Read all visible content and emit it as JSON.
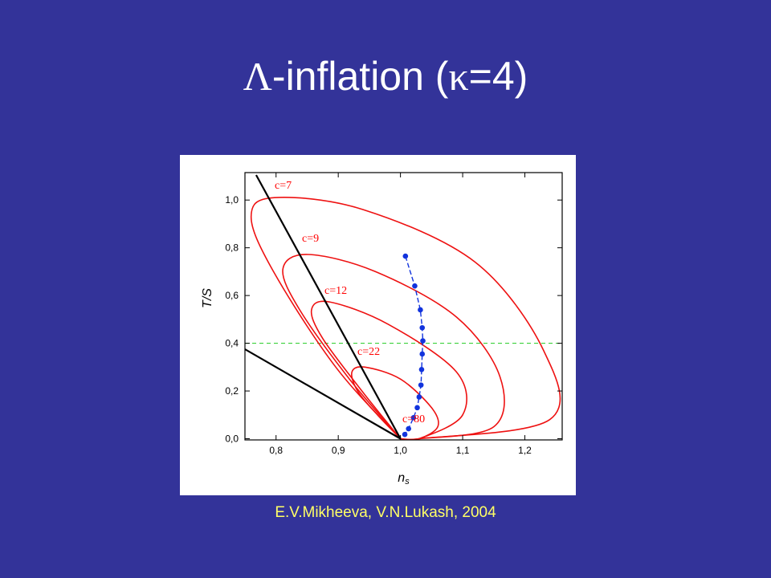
{
  "slide": {
    "title_prefix": "Λ",
    "title_middle": "-inflation (",
    "title_kappa": "κ",
    "title_suffix": "=4)",
    "caption": "E.V.Mikheeva, V.N.Lukash, 2004",
    "background": "#333399"
  },
  "chart_data": {
    "type": "line",
    "title": "",
    "xlabel": "n",
    "xlabel_sub": "s",
    "ylabel": "T/S",
    "xlim": [
      0.75,
      1.26
    ],
    "ylim": [
      -0.005,
      1.115
    ],
    "x_ticks": [
      0.8,
      0.9,
      1.0,
      1.1,
      1.2
    ],
    "x_tick_labels": [
      "0,8",
      "0,9",
      "1,0",
      "1,1",
      "1,2"
    ],
    "y_ticks": [
      0.0,
      0.2,
      0.4,
      0.6,
      0.8,
      1.0
    ],
    "y_tick_labels": [
      "0,0",
      "0,2",
      "0,4",
      "0,6",
      "0,8",
      "1,0"
    ],
    "colors": {
      "contours": "#ee1111",
      "track": "#1133dd",
      "bounds": "#000000",
      "reference": "#22cc22"
    },
    "reference_line": {
      "y": 0.4,
      "style": "dashed"
    },
    "boundary_lines": [
      {
        "name": "steep boundary",
        "x": [
          0.768,
          1.0
        ],
        "y": [
          1.105,
          0.0
        ]
      },
      {
        "name": "shallow boundary",
        "x": [
          0.75,
          1.0
        ],
        "y": [
          0.375,
          0.0
        ]
      }
    ],
    "contours": [
      {
        "label": "c=7",
        "x": [
          1.0,
          0.896,
          0.796,
          0.76,
          0.797,
          0.94,
          1.12,
          1.23,
          1.24,
          1.03,
          1.0
        ],
        "y": [
          0.0,
          0.3,
          0.7,
          0.93,
          1.01,
          0.96,
          0.74,
          0.37,
          0.08,
          0.0,
          0.0
        ]
      },
      {
        "label": "c=9",
        "x": [
          1.0,
          0.918,
          0.838,
          0.811,
          0.851,
          0.96,
          1.09,
          1.16,
          1.15,
          1.03,
          1.0
        ],
        "y": [
          0.0,
          0.25,
          0.54,
          0.71,
          0.772,
          0.7,
          0.51,
          0.26,
          0.05,
          0.0,
          0.0
        ]
      },
      {
        "label": "c=12",
        "x": [
          1.0,
          0.938,
          0.875,
          0.857,
          0.886,
          0.98,
          1.09,
          1.1,
          1.03,
          1.0
        ],
        "y": [
          0.0,
          0.2,
          0.42,
          0.54,
          0.573,
          0.48,
          0.28,
          0.1,
          0.0,
          0.0
        ]
      },
      {
        "label": "c=22",
        "x": [
          1.0,
          0.963,
          0.931,
          0.922,
          0.943,
          1.0,
          1.05,
          1.06,
          1.03,
          1.0
        ],
        "y": [
          0.0,
          0.1,
          0.2,
          0.28,
          0.3,
          0.25,
          0.13,
          0.05,
          0.0,
          0.0
        ]
      }
    ],
    "track": {
      "label": "c=80",
      "points": [
        {
          "x": 1.008,
          "y": 0.765
        },
        {
          "x": 1.023,
          "y": 0.64
        },
        {
          "x": 1.032,
          "y": 0.54
        },
        {
          "x": 1.035,
          "y": 0.465
        },
        {
          "x": 1.036,
          "y": 0.41
        },
        {
          "x": 1.035,
          "y": 0.355
        },
        {
          "x": 1.034,
          "y": 0.29
        },
        {
          "x": 1.033,
          "y": 0.225
        },
        {
          "x": 1.03,
          "y": 0.175
        },
        {
          "x": 1.027,
          "y": 0.13
        },
        {
          "x": 1.021,
          "y": 0.088
        },
        {
          "x": 1.013,
          "y": 0.042
        },
        {
          "x": 1.007,
          "y": 0.018
        }
      ]
    },
    "grid": false,
    "legend": "none"
  }
}
